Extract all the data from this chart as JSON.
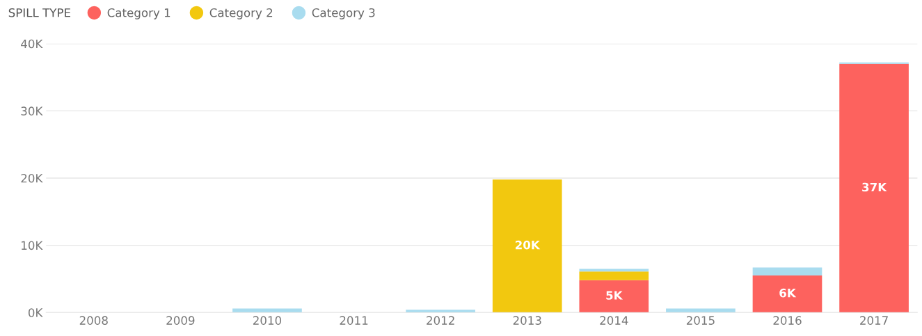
{
  "chart_data": {
    "type": "bar",
    "stacked": true,
    "legend_title": "SPILL TYPE",
    "legend": "top left",
    "grid": "y",
    "categories": [
      "2008",
      "2009",
      "2010",
      "2011",
      "2012",
      "2013",
      "2014",
      "2015",
      "2016",
      "2017"
    ],
    "series": [
      {
        "name": "Category 1",
        "color": "#fd625e",
        "values": [
          0,
          0,
          0,
          0,
          0,
          0,
          4800,
          0,
          5500,
          37000
        ],
        "value_labels": [
          null,
          null,
          null,
          null,
          null,
          null,
          "5K",
          null,
          "6K",
          "37K"
        ]
      },
      {
        "name": "Category 2",
        "color": "#f2c80f",
        "values": [
          0,
          0,
          0,
          0,
          0,
          19800,
          1300,
          0,
          0,
          0
        ],
        "value_labels": [
          null,
          null,
          null,
          null,
          null,
          "20K",
          null,
          null,
          null,
          null
        ]
      },
      {
        "name": "Category 3",
        "color": "#a9dcef",
        "values": [
          0,
          0,
          600,
          0,
          400,
          0,
          400,
          600,
          1200,
          200
        ]
      }
    ],
    "ylim": [
      0,
      40000
    ],
    "yticks": [
      {
        "value": 0,
        "label": "0K"
      },
      {
        "value": 10000,
        "label": "10K"
      },
      {
        "value": 20000,
        "label": "20K"
      },
      {
        "value": 30000,
        "label": "30K"
      },
      {
        "value": 40000,
        "label": "40K"
      }
    ]
  }
}
